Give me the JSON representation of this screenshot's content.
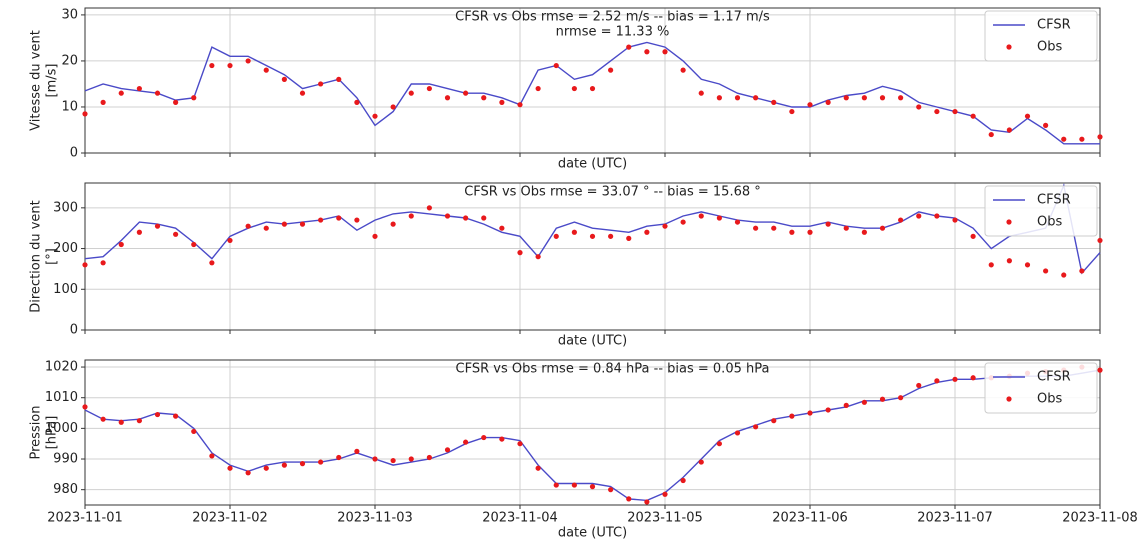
{
  "chart_data": [
    {
      "type": "line",
      "title": "CFSR vs Obs rmse = 2.52 m/s -- bias = 1.17 m/s",
      "subtitle": "nrmse = 11.33 %",
      "xlabel": "date (UTC)",
      "ylabel": [
        "Vitesse du vent",
        "[m/s]"
      ],
      "x": [
        0,
        0.125,
        0.25,
        0.375,
        0.5,
        0.625,
        0.75,
        0.875,
        1,
        1.125,
        1.25,
        1.375,
        1.5,
        1.625,
        1.75,
        1.875,
        2,
        2.125,
        2.25,
        2.375,
        2.5,
        2.625,
        2.75,
        2.875,
        3,
        3.125,
        3.25,
        3.375,
        3.5,
        3.625,
        3.75,
        3.875,
        4,
        4.125,
        4.25,
        4.375,
        4.5,
        4.625,
        4.75,
        4.875,
        5,
        5.125,
        5.25,
        5.375,
        5.5,
        5.625,
        5.75,
        5.875,
        6,
        6.125,
        6.25,
        6.375,
        6.5,
        6.625,
        6.75,
        6.875,
        7
      ],
      "xlim": [
        0,
        7
      ],
      "ylim": [
        0,
        31.5
      ],
      "yticks": [
        0,
        10,
        20,
        30
      ],
      "grid": true,
      "legend": "upper right",
      "series": [
        {
          "name": "CFSR",
          "color": "#4a4ac8",
          "style": "line",
          "values": [
            13.5,
            15,
            14,
            13.5,
            13,
            11.5,
            12,
            23,
            21,
            21,
            19,
            17,
            14,
            15,
            16,
            12,
            6,
            9,
            15,
            15,
            14,
            13,
            13,
            12,
            10.5,
            18,
            19,
            16,
            17,
            20,
            23,
            24,
            23,
            20,
            16,
            15,
            13,
            12,
            11,
            10,
            10,
            11.5,
            12.5,
            13,
            14.5,
            13.5,
            11,
            10,
            9,
            8,
            5,
            4.5,
            7.5,
            5,
            2,
            2,
            2
          ]
        },
        {
          "name": "Obs",
          "color": "#e8191c",
          "style": "scatter",
          "values": [
            8.5,
            11,
            13,
            14,
            13,
            11,
            12,
            19,
            19,
            20,
            18,
            16,
            13,
            15,
            16,
            11,
            8,
            10,
            13,
            14,
            12,
            13,
            12,
            11,
            10.5,
            14,
            19,
            14,
            14,
            18,
            23,
            22,
            22,
            18,
            13,
            12,
            12,
            12,
            11,
            9,
            10.5,
            11,
            12,
            12,
            12,
            12,
            10,
            9,
            9,
            8,
            4,
            5,
            8,
            6,
            3,
            3,
            3.5
          ]
        }
      ]
    },
    {
      "type": "line",
      "title": "CFSR vs Obs rmse = 33.07 ° -- bias = 15.68 °",
      "xlabel": "date (UTC)",
      "ylabel": [
        "Direction du vent",
        "[°]"
      ],
      "x": [
        0,
        0.125,
        0.25,
        0.375,
        0.5,
        0.625,
        0.75,
        0.875,
        1,
        1.125,
        1.25,
        1.375,
        1.5,
        1.625,
        1.75,
        1.875,
        2,
        2.125,
        2.25,
        2.375,
        2.5,
        2.625,
        2.75,
        2.875,
        3,
        3.125,
        3.25,
        3.375,
        3.5,
        3.625,
        3.75,
        3.875,
        4,
        4.125,
        4.25,
        4.375,
        4.5,
        4.625,
        4.75,
        4.875,
        5,
        5.125,
        5.25,
        5.375,
        5.5,
        5.625,
        5.75,
        5.875,
        6,
        6.125,
        6.25,
        6.375,
        6.5,
        6.625,
        6.75,
        6.875,
        7
      ],
      "xlim": [
        0,
        7
      ],
      "ylim": [
        0,
        361
      ],
      "yticks": [
        0,
        100,
        200,
        300
      ],
      "grid": true,
      "legend": "upper right",
      "series": [
        {
          "name": "CFSR",
          "color": "#4a4ac8",
          "style": "line",
          "values": [
            175,
            180,
            220,
            265,
            260,
            250,
            215,
            175,
            230,
            250,
            265,
            260,
            265,
            270,
            280,
            245,
            270,
            285,
            290,
            285,
            280,
            275,
            260,
            240,
            230,
            180,
            250,
            265,
            250,
            245,
            240,
            255,
            260,
            280,
            290,
            280,
            270,
            265,
            265,
            255,
            255,
            265,
            255,
            250,
            250,
            265,
            290,
            280,
            275,
            250,
            200,
            230,
            240,
            250,
            355,
            140,
            190
          ]
        },
        {
          "name": "Obs",
          "color": "#e8191c",
          "style": "scatter",
          "values": [
            160,
            165,
            210,
            240,
            255,
            235,
            210,
            165,
            220,
            255,
            250,
            260,
            260,
            270,
            275,
            270,
            230,
            260,
            280,
            300,
            280,
            275,
            275,
            250,
            190,
            180,
            230,
            240,
            230,
            230,
            225,
            240,
            255,
            265,
            280,
            275,
            265,
            250,
            250,
            240,
            240,
            260,
            250,
            240,
            250,
            270,
            280,
            280,
            270,
            230,
            160,
            170,
            160,
            145,
            135,
            145,
            220
          ]
        }
      ]
    },
    {
      "type": "line",
      "title": "CFSR vs Obs rmse = 0.84 hPa -- bias = 0.05 hPa",
      "xlabel": "date (UTC)",
      "ylabel": [
        "Pression",
        "[hPa]"
      ],
      "x": [
        0,
        0.125,
        0.25,
        0.375,
        0.5,
        0.625,
        0.75,
        0.875,
        1,
        1.125,
        1.25,
        1.375,
        1.5,
        1.625,
        1.75,
        1.875,
        2,
        2.125,
        2.25,
        2.375,
        2.5,
        2.625,
        2.75,
        2.875,
        3,
        3.125,
        3.25,
        3.375,
        3.5,
        3.625,
        3.75,
        3.875,
        4,
        4.125,
        4.25,
        4.375,
        4.5,
        4.625,
        4.75,
        4.875,
        5,
        5.125,
        5.25,
        5.375,
        5.5,
        5.625,
        5.75,
        5.875,
        6,
        6.125,
        6.25,
        6.375,
        6.5,
        6.625,
        6.75,
        6.875,
        7
      ],
      "xlim": [
        0,
        7
      ],
      "ylim": [
        975,
        1022.3
      ],
      "yticks": [
        980,
        990,
        1000,
        1010,
        1020
      ],
      "xticks": [
        {
          "value": 0,
          "label": "2023-11-01"
        },
        {
          "value": 1,
          "label": "2023-11-02"
        },
        {
          "value": 2,
          "label": "2023-11-03"
        },
        {
          "value": 3,
          "label": "2023-11-04"
        },
        {
          "value": 4,
          "label": "2023-11-05"
        },
        {
          "value": 5,
          "label": "2023-11-06"
        },
        {
          "value": 6,
          "label": "2023-11-07"
        },
        {
          "value": 7,
          "label": "2023-11-08"
        }
      ],
      "grid": true,
      "legend": "upper right",
      "series": [
        {
          "name": "CFSR",
          "color": "#4a4ac8",
          "style": "line",
          "values": [
            1006,
            1003,
            1002.5,
            1003,
            1005,
            1004.5,
            1000,
            992,
            988,
            986,
            988,
            989,
            989,
            989,
            990,
            992,
            990,
            988,
            989,
            990,
            992,
            995,
            997,
            997,
            996,
            988,
            982,
            982,
            982,
            981,
            977,
            976.5,
            979,
            984,
            990,
            996,
            999,
            1001,
            1003,
            1004,
            1005,
            1006,
            1007,
            1009,
            1009,
            1010,
            1013,
            1015,
            1016,
            1016,
            1016.5,
            1017,
            1017,
            1017,
            1017,
            1018,
            1019
          ]
        },
        {
          "name": "Obs",
          "color": "#e8191c",
          "style": "scatter",
          "values": [
            1007,
            1003,
            1002,
            1002.5,
            1004.5,
            1004,
            999,
            991,
            987,
            985.5,
            987,
            988,
            988.5,
            989,
            990.5,
            992.5,
            990,
            989.5,
            990,
            990.5,
            993,
            995.5,
            997,
            996.5,
            995,
            987,
            981.5,
            981.5,
            981,
            980,
            977,
            976,
            978.5,
            983,
            989,
            995,
            998.5,
            1000.5,
            1002.5,
            1004,
            1005,
            1006,
            1007.5,
            1008.5,
            1009.5,
            1010,
            1014,
            1015.5,
            1016,
            1016.5,
            1016.5,
            1017,
            1018,
            1018.5,
            1019,
            1020,
            1019
          ]
        }
      ]
    }
  ]
}
